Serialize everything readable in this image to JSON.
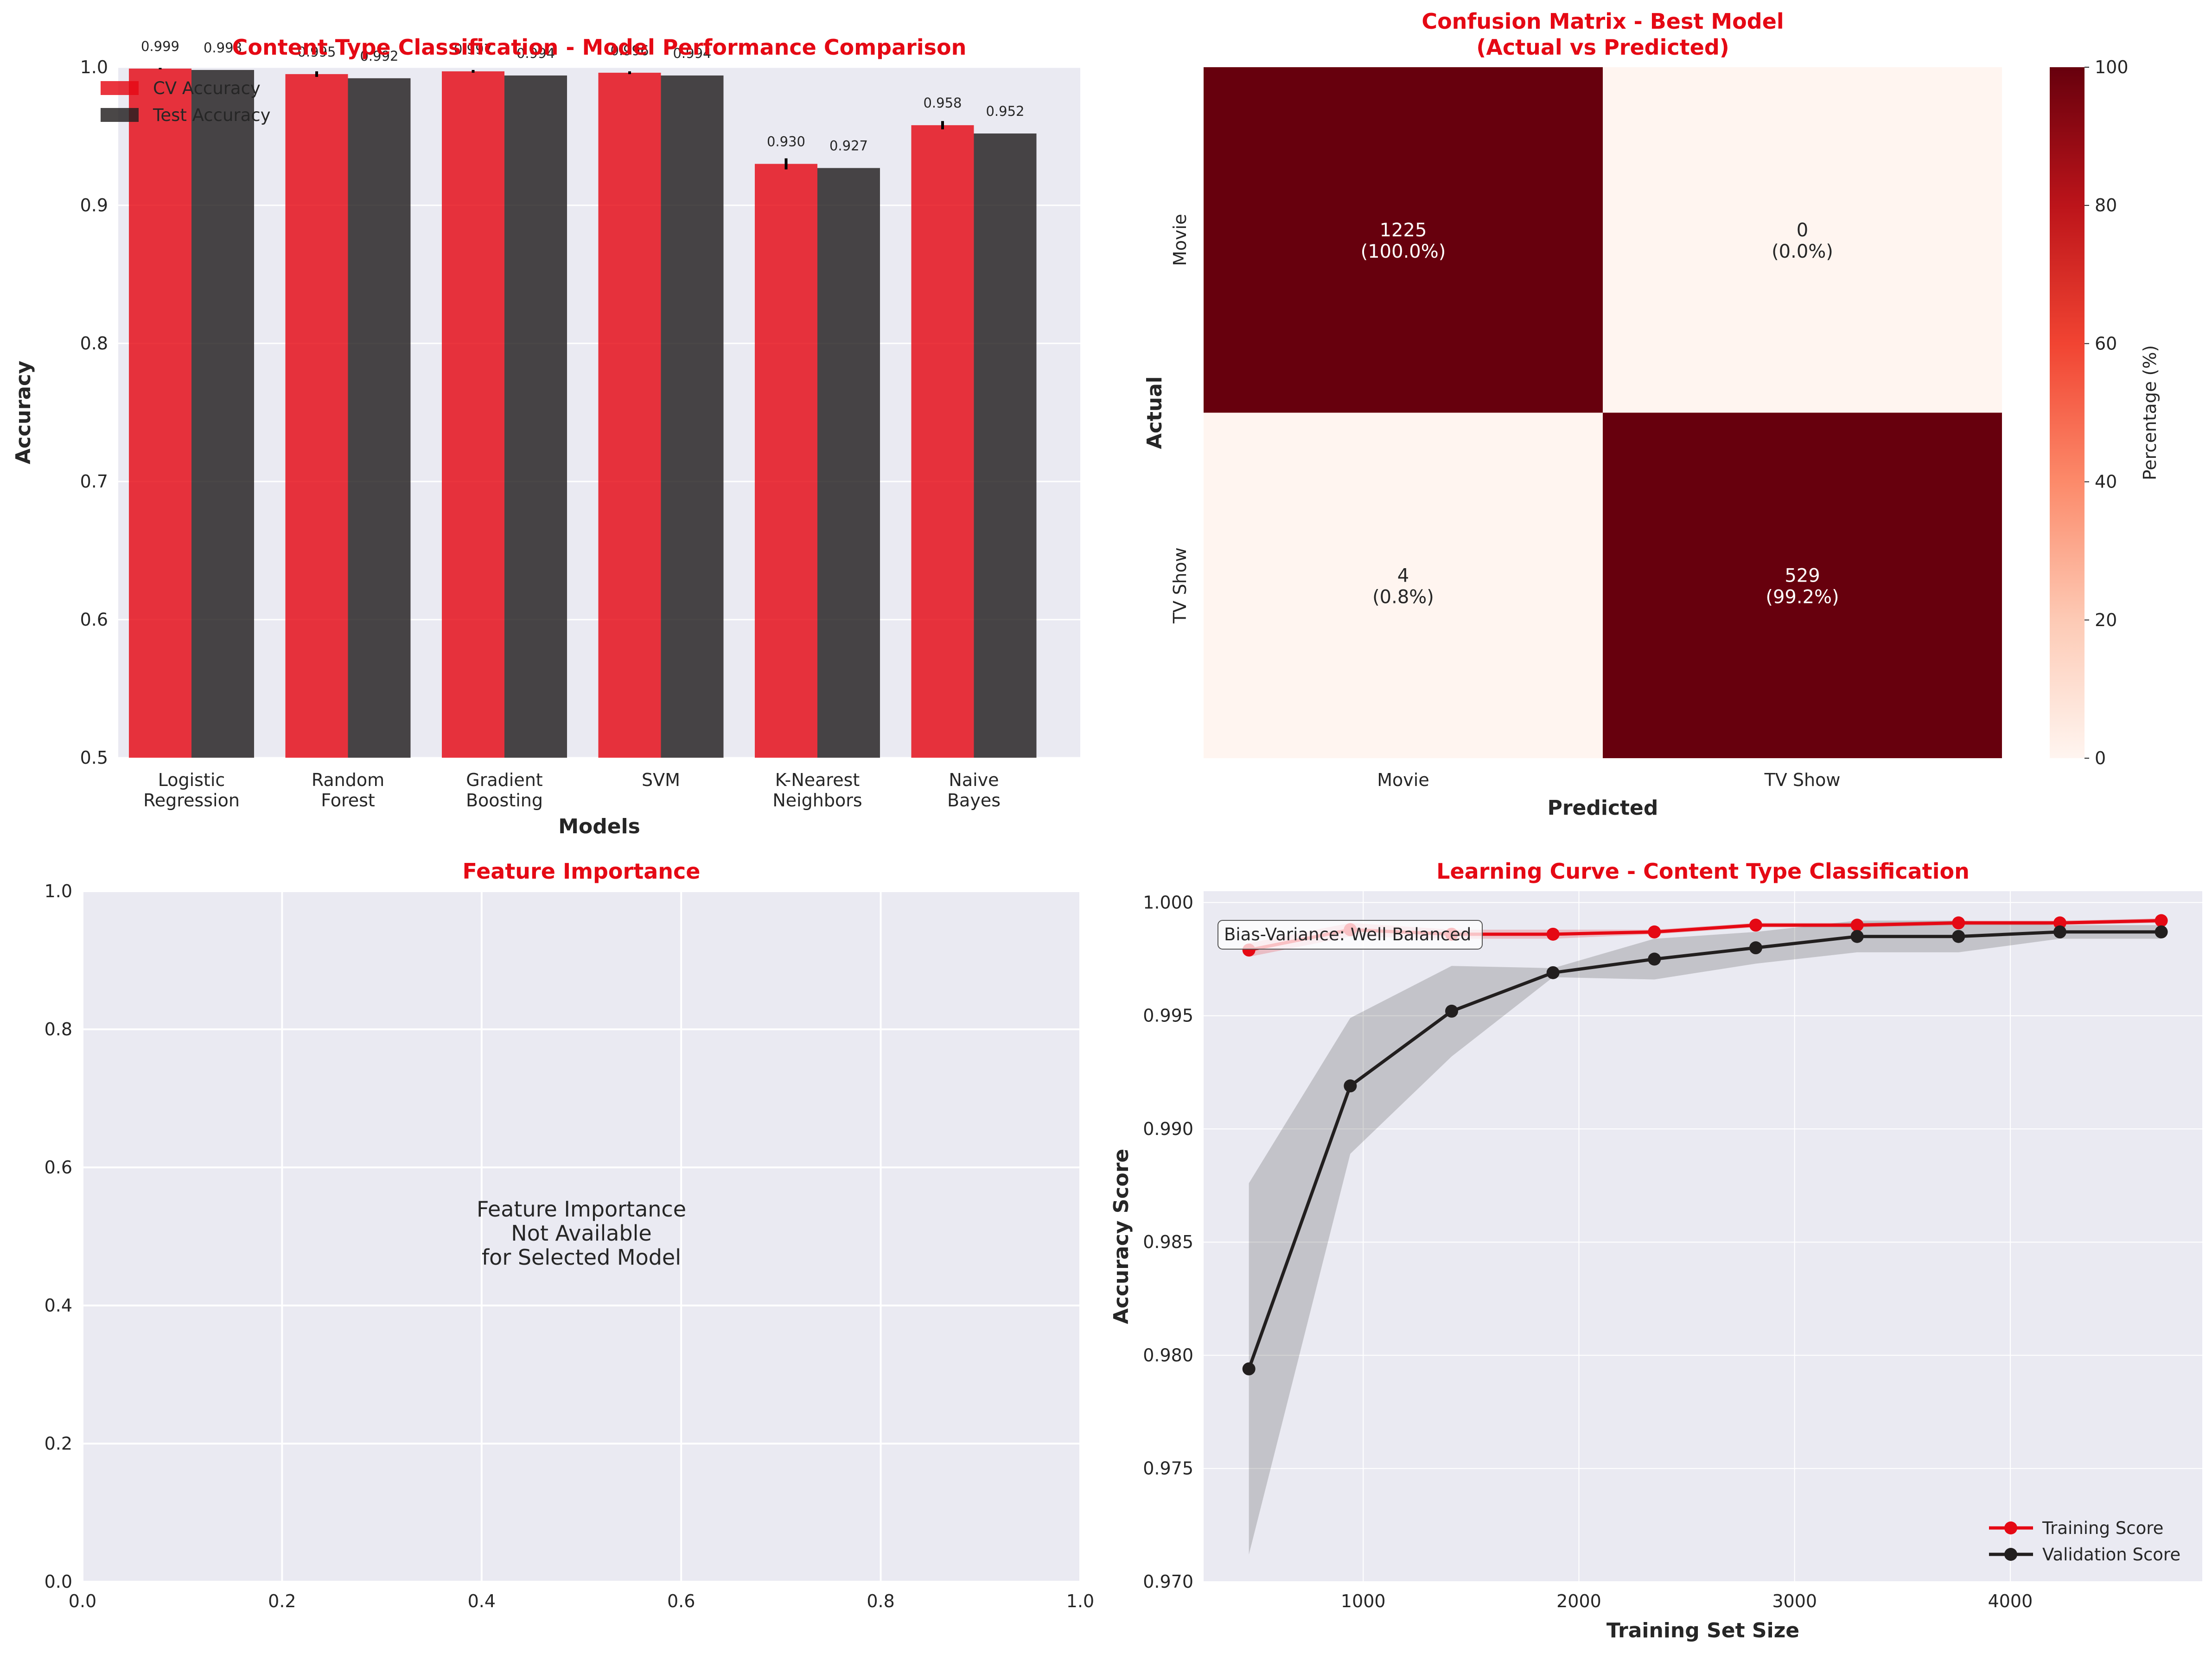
{
  "colors": {
    "cv": "#e50914",
    "test": "#221f1f",
    "panel_bg": "#eaeaf2",
    "title": "#e50914",
    "heat_dark": "#67000d",
    "heat_light": "#fff5f0"
  },
  "chart_data": [
    {
      "type": "bar",
      "title": "Content Type Classification - Model Performance Comparison",
      "xlabel": "Models",
      "ylabel": "Accuracy",
      "ylim": [
        0.5,
        1.0
      ],
      "yticks": [
        "0.5",
        "0.6",
        "0.7",
        "0.8",
        "0.9",
        "1.0"
      ],
      "categories": [
        [
          "Logistic",
          "Regression"
        ],
        [
          "Random",
          "Forest"
        ],
        [
          "Gradient",
          "Boosting"
        ],
        [
          "SVM"
        ],
        [
          "K-Nearest",
          "Neighbors"
        ],
        [
          "Naive",
          "Bayes"
        ]
      ],
      "series": [
        {
          "name": "CV Accuracy",
          "values": [
            0.999,
            0.995,
            0.997,
            0.996,
            0.93,
            0.958
          ],
          "labels": [
            "0.999",
            "0.995",
            "0.997",
            "0.996",
            "0.930",
            "0.958"
          ]
        },
        {
          "name": "Test Accuracy",
          "values": [
            0.998,
            0.992,
            0.994,
            0.994,
            0.927,
            0.952
          ],
          "labels": [
            "0.998",
            "0.992",
            "0.994",
            "0.994",
            "0.927",
            "0.952"
          ]
        }
      ],
      "legend_position": "top-left",
      "grid": true
    },
    {
      "type": "heatmap",
      "title": "Confusion Matrix - Best Model",
      "subtitle": "(Actual vs Predicted)",
      "xlabel": "Predicted",
      "ylabel": "Actual",
      "x_categories": [
        "Movie",
        "TV Show"
      ],
      "y_categories": [
        "Movie",
        "TV Show"
      ],
      "values": [
        [
          1225,
          0
        ],
        [
          4,
          529
        ]
      ],
      "percentages": [
        [
          100.0,
          0.0
        ],
        [
          0.8,
          99.2
        ]
      ],
      "cell_text": [
        [
          [
            "1225",
            "(100.0%)"
          ],
          [
            "0",
            "(0.0%)"
          ]
        ],
        [
          [
            "4",
            "(0.8%)"
          ],
          [
            "529",
            "(99.2%)"
          ]
        ]
      ],
      "colorbar": {
        "label": "Percentage (%)",
        "range": [
          0,
          100
        ],
        "ticks": [
          "0",
          "20",
          "40",
          "60",
          "80",
          "100"
        ]
      }
    },
    {
      "type": "bar",
      "title": "Feature Importance",
      "message": [
        "Feature Importance",
        "Not Available",
        "for Selected Model"
      ],
      "xlim": [
        0.0,
        1.0
      ],
      "ylim": [
        0.0,
        1.0
      ],
      "xticks": [
        "0.0",
        "0.2",
        "0.4",
        "0.6",
        "0.8",
        "1.0"
      ],
      "yticks": [
        "0.0",
        "0.2",
        "0.4",
        "0.6",
        "0.8",
        "1.0"
      ],
      "grid": true
    },
    {
      "type": "line",
      "title": "Learning Curve - Content Type Classification",
      "xlabel": "Training Set Size",
      "ylabel": "Accuracy Score",
      "xlim": [
        260,
        4890
      ],
      "ylim": [
        0.97,
        1.0005
      ],
      "xticks": [
        "1000",
        "2000",
        "3000",
        "4000"
      ],
      "yticks": [
        "0.970",
        "0.975",
        "0.980",
        "0.985",
        "0.990",
        "0.995",
        "1.000"
      ],
      "x": [
        470,
        940,
        1410,
        1880,
        2350,
        2820,
        3290,
        3760,
        4230,
        4700
      ],
      "series": [
        {
          "name": "Training Score",
          "values": [
            0.9979,
            0.9988,
            0.9986,
            0.9986,
            0.9987,
            0.999,
            0.999,
            0.9991,
            0.9991,
            0.9992
          ],
          "lower": [
            0.9976,
            0.9985,
            0.9984,
            0.9984,
            0.9986,
            0.9989,
            0.9989,
            0.999,
            0.999,
            0.9991
          ],
          "upper": [
            0.9982,
            0.9991,
            0.9988,
            0.9988,
            0.9988,
            0.9991,
            0.9991,
            0.9992,
            0.9992,
            0.9993
          ]
        },
        {
          "name": "Validation Score",
          "values": [
            0.9794,
            0.9919,
            0.9952,
            0.9969,
            0.9975,
            0.998,
            0.9985,
            0.9985,
            0.9987,
            0.9987
          ],
          "lower": [
            0.9712,
            0.9889,
            0.9932,
            0.9967,
            0.9966,
            0.9973,
            0.9978,
            0.9978,
            0.9984,
            0.9984
          ],
          "upper": [
            0.9876,
            0.9949,
            0.9972,
            0.9971,
            0.9984,
            0.9987,
            0.9992,
            0.9992,
            0.999,
            0.999
          ]
        }
      ],
      "annotation": "Bias-Variance: Well Balanced",
      "legend_position": "bottom-right",
      "grid": true
    }
  ]
}
